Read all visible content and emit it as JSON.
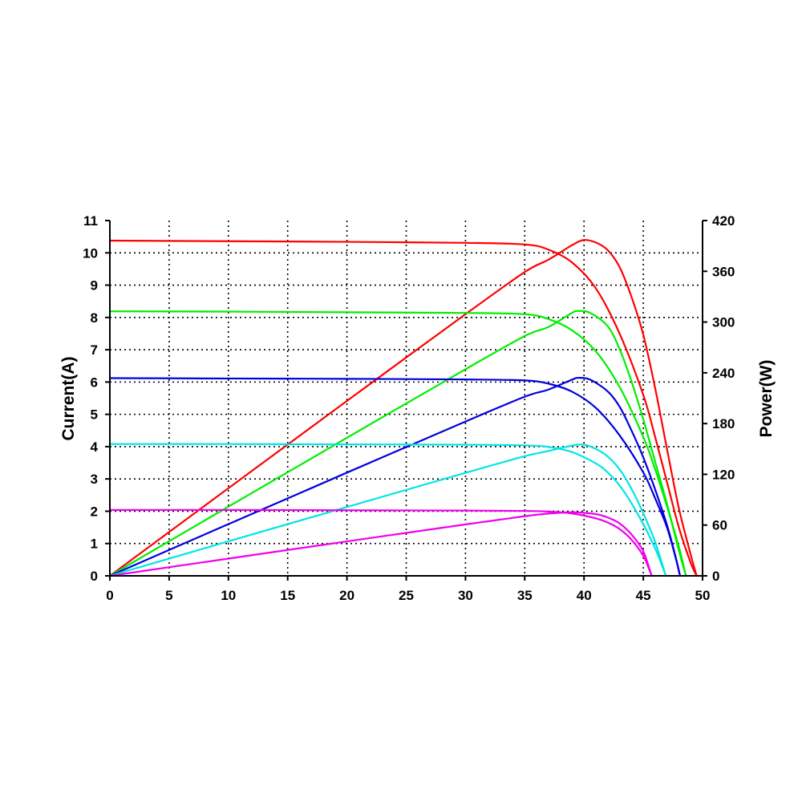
{
  "chart_data": {
    "type": "line",
    "title": "",
    "xlabel": "",
    "ylabel": "Current(A)",
    "y2label": "Power(W)",
    "xlim": [
      0,
      50
    ],
    "ylim": [
      0,
      11
    ],
    "y2lim": [
      0,
      420
    ],
    "x_ticks": [
      "0",
      "5",
      "10",
      "15",
      "20",
      "25",
      "30",
      "35",
      "40",
      "45",
      "50"
    ],
    "y_ticks": [
      "0",
      "1",
      "2",
      "3",
      "4",
      "5",
      "6",
      "7",
      "8",
      "9",
      "10",
      "11"
    ],
    "y2_ticks": [
      "0",
      "60",
      "120",
      "180",
      "240",
      "300",
      "360",
      "420"
    ],
    "grid": true,
    "grid_style": "dotted",
    "legend": "none",
    "series": [
      {
        "color": "#ff0000",
        "axis": "current",
        "points": [
          [
            0,
            10.38
          ],
          [
            10,
            10.36
          ],
          [
            20,
            10.34
          ],
          [
            30,
            10.31
          ],
          [
            35,
            10.26
          ],
          [
            37,
            10.1
          ],
          [
            39,
            9.7
          ],
          [
            41,
            8.9
          ],
          [
            43,
            7.5
          ],
          [
            45,
            5.6
          ],
          [
            46,
            4.3
          ],
          [
            47,
            2.9
          ],
          [
            48,
            1.5
          ],
          [
            49,
            0.4
          ],
          [
            49.5,
            0
          ]
        ]
      },
      {
        "color": "#ff0000",
        "axis": "power",
        "points": [
          [
            0,
            0
          ],
          [
            10,
            103.6
          ],
          [
            20,
            206.8
          ],
          [
            30,
            309.3
          ],
          [
            35,
            359.1
          ],
          [
            37,
            373.7
          ],
          [
            39,
            391
          ],
          [
            40,
            397
          ],
          [
            41,
            394
          ],
          [
            42,
            385
          ],
          [
            43,
            365
          ],
          [
            44,
            330
          ],
          [
            45,
            285
          ],
          [
            46,
            222
          ],
          [
            47,
            150
          ],
          [
            48,
            80
          ],
          [
            49,
            25
          ],
          [
            49.5,
            0
          ]
        ]
      },
      {
        "color": "#00ee00",
        "axis": "current",
        "points": [
          [
            0,
            8.19
          ],
          [
            10,
            8.18
          ],
          [
            20,
            8.16
          ],
          [
            30,
            8.14
          ],
          [
            35,
            8.1
          ],
          [
            37,
            7.95
          ],
          [
            39,
            7.6
          ],
          [
            41,
            6.95
          ],
          [
            43,
            5.85
          ],
          [
            45,
            4.3
          ],
          [
            46,
            3.3
          ],
          [
            47,
            2.15
          ],
          [
            48,
            0.9
          ],
          [
            48.6,
            0
          ]
        ]
      },
      {
        "color": "#00ee00",
        "axis": "power",
        "points": [
          [
            0,
            0
          ],
          [
            10,
            81.8
          ],
          [
            20,
            163.2
          ],
          [
            30,
            244.2
          ],
          [
            35,
            283.5
          ],
          [
            37,
            294.2
          ],
          [
            39,
            311
          ],
          [
            39.5,
            313
          ],
          [
            40.5,
            311
          ],
          [
            42,
            295
          ],
          [
            43,
            268
          ],
          [
            44,
            230
          ],
          [
            45,
            185
          ],
          [
            46,
            135
          ],
          [
            47,
            85
          ],
          [
            48,
            30
          ],
          [
            48.6,
            0
          ]
        ]
      },
      {
        "color": "#0000dd",
        "axis": "current",
        "points": [
          [
            0,
            6.12
          ],
          [
            10,
            6.11
          ],
          [
            20,
            6.1
          ],
          [
            30,
            6.08
          ],
          [
            35,
            6.05
          ],
          [
            37,
            5.95
          ],
          [
            39,
            5.7
          ],
          [
            41,
            5.2
          ],
          [
            43,
            4.35
          ],
          [
            45,
            3.2
          ],
          [
            46,
            2.4
          ],
          [
            47,
            1.5
          ],
          [
            47.7,
            0.6
          ],
          [
            48.1,
            0
          ]
        ]
      },
      {
        "color": "#0000dd",
        "axis": "power",
        "points": [
          [
            0,
            0
          ],
          [
            10,
            61.1
          ],
          [
            20,
            122
          ],
          [
            30,
            182.4
          ],
          [
            35,
            211.8
          ],
          [
            37,
            220.2
          ],
          [
            39,
            232
          ],
          [
            39.5,
            234
          ],
          [
            40.5,
            232
          ],
          [
            42,
            218
          ],
          [
            43,
            200
          ],
          [
            44,
            172
          ],
          [
            45,
            140
          ],
          [
            46,
            102
          ],
          [
            47,
            60
          ],
          [
            47.7,
            24
          ],
          [
            48.1,
            0
          ]
        ]
      },
      {
        "color": "#00e5e5",
        "axis": "current",
        "points": [
          [
            0,
            4.08
          ],
          [
            10,
            4.08
          ],
          [
            20,
            4.07
          ],
          [
            30,
            4.06
          ],
          [
            35,
            4.04
          ],
          [
            37,
            3.99
          ],
          [
            39,
            3.83
          ],
          [
            41,
            3.48
          ],
          [
            42,
            3.2
          ],
          [
            43,
            2.8
          ],
          [
            44,
            2.25
          ],
          [
            45,
            1.6
          ],
          [
            46,
            0.85
          ],
          [
            46.6,
            0.3
          ],
          [
            46.9,
            0
          ]
        ]
      },
      {
        "color": "#00e5e5",
        "axis": "power",
        "points": [
          [
            0,
            0
          ],
          [
            10,
            40.8
          ],
          [
            20,
            81.4
          ],
          [
            30,
            121.8
          ],
          [
            35,
            141.4
          ],
          [
            37,
            147.6
          ],
          [
            39,
            154
          ],
          [
            40,
            155
          ],
          [
            41,
            150
          ],
          [
            42,
            141
          ],
          [
            43,
            126
          ],
          [
            44,
            103
          ],
          [
            45,
            74
          ],
          [
            46,
            40
          ],
          [
            46.9,
            0
          ]
        ]
      },
      {
        "color": "#ee00ee",
        "axis": "current",
        "points": [
          [
            0,
            2.04
          ],
          [
            10,
            2.04
          ],
          [
            20,
            2.03
          ],
          [
            30,
            2.02
          ],
          [
            35,
            2.01
          ],
          [
            37,
            1.99
          ],
          [
            39,
            1.93
          ],
          [
            41,
            1.78
          ],
          [
            42,
            1.65
          ],
          [
            43,
            1.45
          ],
          [
            44,
            1.12
          ],
          [
            45,
            0.62
          ],
          [
            45.5,
            0.2
          ],
          [
            45.7,
            0
          ]
        ]
      },
      {
        "color": "#ee00ee",
        "axis": "power",
        "points": [
          [
            0,
            0
          ],
          [
            10,
            20.4
          ],
          [
            20,
            40.7
          ],
          [
            30,
            60.8
          ],
          [
            35,
            70.5
          ],
          [
            37,
            73.6
          ],
          [
            38.5,
            75
          ],
          [
            39.5,
            75
          ],
          [
            41,
            73
          ],
          [
            42,
            69
          ],
          [
            43,
            62
          ],
          [
            44,
            49
          ],
          [
            45,
            29
          ],
          [
            45.7,
            0
          ]
        ]
      }
    ]
  }
}
